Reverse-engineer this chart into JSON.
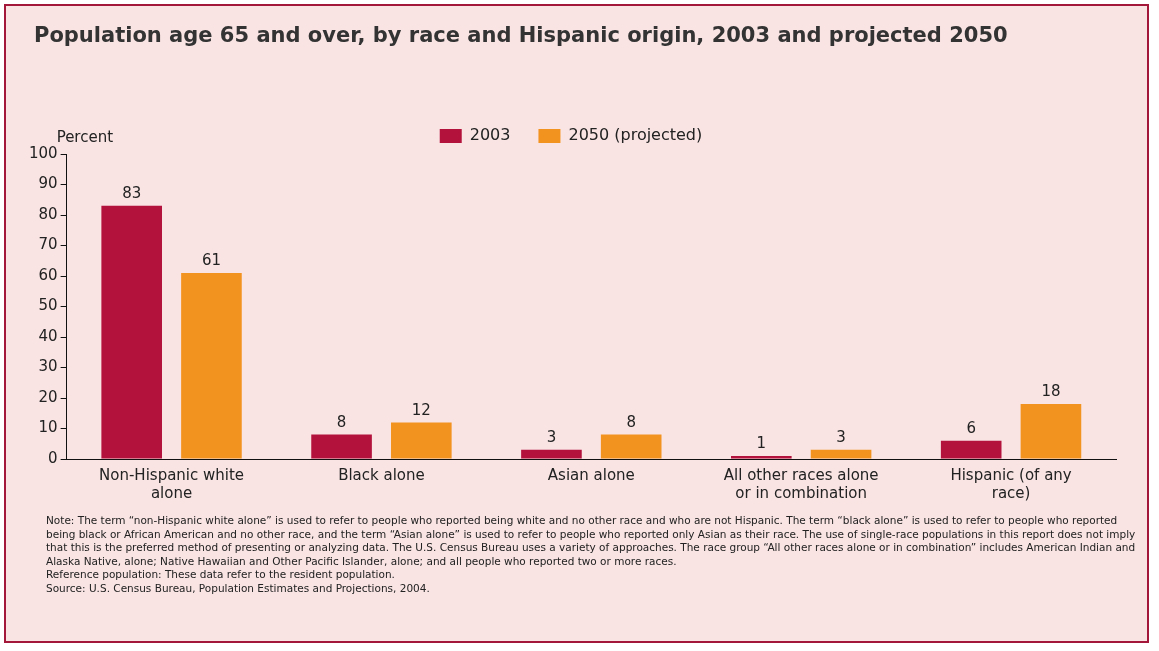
{
  "chart_data": {
    "type": "bar",
    "title": "Population age 65 and over, by race and Hispanic origin, 2003 and projected 2050",
    "ylabel": "Percent",
    "categories": [
      "Non-Hispanic white alone",
      "Black alone",
      "Asian alone",
      "All other races alone or in combination",
      "Hispanic (of any race)"
    ],
    "series": [
      {
        "name": "2003",
        "color": "#b3123c",
        "values": [
          83,
          8,
          3,
          1,
          6
        ]
      },
      {
        "name": "2050 (projected)",
        "color": "#f3931f",
        "values": [
          61,
          12,
          8,
          3,
          18
        ]
      }
    ],
    "ylim": [
      0,
      100
    ],
    "yticks": [
      0,
      10,
      20,
      30,
      40,
      50,
      60,
      70,
      80,
      90,
      100
    ],
    "grid": false,
    "legend": "top",
    "data_labels": true,
    "annotations": [
      "Note: The term “non-Hispanic white alone” is used to refer to people who reported being white and no other race and who are not Hispanic. The term “black alone” is used to refer to people who reported being black or African American and no other race, and the term “Asian alone” is used to refer to people who reported only Asian as their race.  The use of single-race populations in this report does not imply that this is the preferred method of presenting or analyzing data. The U.S. Census Bureau uses a variety of approaches. The race group “All other races alone or in combination” includes American Indian and Alaska Native, alone; Native Hawaiian and Other Pacific Islander, alone; and all people who reported two or more races.",
      "Reference population: These data refer to the resident population.",
      "Source: U.S. Census Bureau, Population Estimates and Projections, 2004."
    ]
  }
}
